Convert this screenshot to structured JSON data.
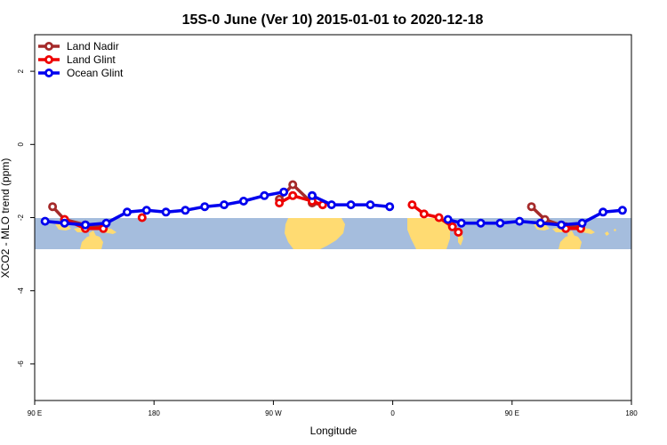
{
  "chart_data": {
    "type": "line",
    "title": "15S-0 June (Ver 10)   2015-01-01 to 2020-12-18",
    "xlabel": "Longitude",
    "ylabel": "XCO2 - MLO trend (ppm)",
    "xlim": [
      90,
      450
    ],
    "ylim": [
      -7,
      3
    ],
    "x_ticks": [
      {
        "value": 90,
        "label": "90 E"
      },
      {
        "value": 162,
        "label": "180"
      },
      {
        "value": 234,
        "label": "90 W"
      },
      {
        "value": 306,
        "label": "0"
      },
      {
        "value": 378,
        "label": "90 E"
      },
      {
        "value": 450,
        "label": "180"
      }
    ],
    "y_ticks": [
      {
        "value": -6,
        "label": "-6"
      },
      {
        "value": -4,
        "label": "-4"
      },
      {
        "value": -2,
        "label": "-2"
      },
      {
        "value": 0,
        "label": "0"
      },
      {
        "value": 2,
        "label": "2"
      }
    ],
    "grid": false,
    "legend_position": "top-left",
    "background_map": "world map strip (ocean blue, land yellow) spanning latitude band 15S-0",
    "series": [
      {
        "name": "Land Nadir",
        "color": "#a52a2a",
        "segments": [
          [
            [
              100.8,
              -1.7
            ],
            [
              108.0,
              -2.05
            ],
            [
              120.6,
              -2.2
            ],
            [
              131.4,
              -2.25
            ]
          ],
          [
            [
              237.6,
              -1.5
            ],
            [
              245.7,
              -1.1
            ],
            [
              257.4,
              -1.6
            ],
            [
              263.7,
              -1.65
            ]
          ],
          [
            [
              389.7,
              -1.7
            ],
            [
              397.8,
              -2.05
            ],
            [
              410.4,
              -2.25
            ],
            [
              419.4,
              -2.25
            ]
          ]
        ]
      },
      {
        "name": "Land Glint",
        "color": "#ee0000",
        "segments": [
          [
            [
              108.0,
              -2.05
            ],
            [
              120.6,
              -2.3
            ],
            [
              131.4,
              -2.3
            ]
          ],
          [
            [
              154.8,
              -2.0
            ]
          ],
          [
            [
              237.6,
              -1.6
            ],
            [
              245.7,
              -1.4
            ],
            [
              257.4,
              -1.55
            ],
            [
              263.7,
              -1.65
            ]
          ],
          [
            [
              317.7,
              -1.65
            ],
            [
              324.9,
              -1.9
            ],
            [
              333.9,
              -2.0
            ],
            [
              342.0,
              -2.25
            ],
            [
              345.6,
              -2.4
            ]
          ],
          [
            [
              410.4,
              -2.3
            ],
            [
              419.4,
              -2.3
            ]
          ]
        ]
      },
      {
        "name": "Ocean Glint",
        "color": "#0000ee",
        "segments": [
          [
            [
              96.3,
              -2.1
            ],
            [
              108.0,
              -2.15
            ],
            [
              120.6,
              -2.2
            ],
            [
              133.2,
              -2.15
            ],
            [
              145.8,
              -1.85
            ],
            [
              157.5,
              -1.8
            ],
            [
              169.2,
              -1.85
            ],
            [
              180.9,
              -1.8
            ],
            [
              192.6,
              -1.7
            ],
            [
              204.3,
              -1.65
            ],
            [
              216.0,
              -1.55
            ],
            [
              228.6,
              -1.4
            ],
            [
              240.3,
              -1.3
            ]
          ],
          [
            [
              257.4,
              -1.4
            ],
            [
              269.1,
              -1.65
            ],
            [
              280.8,
              -1.65
            ],
            [
              292.5,
              -1.65
            ],
            [
              304.2,
              -1.7
            ]
          ],
          [
            [
              339.3,
              -2.05
            ],
            [
              347.4,
              -2.15
            ],
            [
              359.1,
              -2.15
            ],
            [
              370.8,
              -2.15
            ],
            [
              382.5,
              -2.1
            ],
            [
              395.1,
              -2.15
            ],
            [
              407.7,
              -2.2
            ],
            [
              420.3,
              -2.15
            ],
            [
              432.9,
              -1.85
            ],
            [
              444.6,
              -1.8
            ]
          ]
        ]
      }
    ]
  }
}
